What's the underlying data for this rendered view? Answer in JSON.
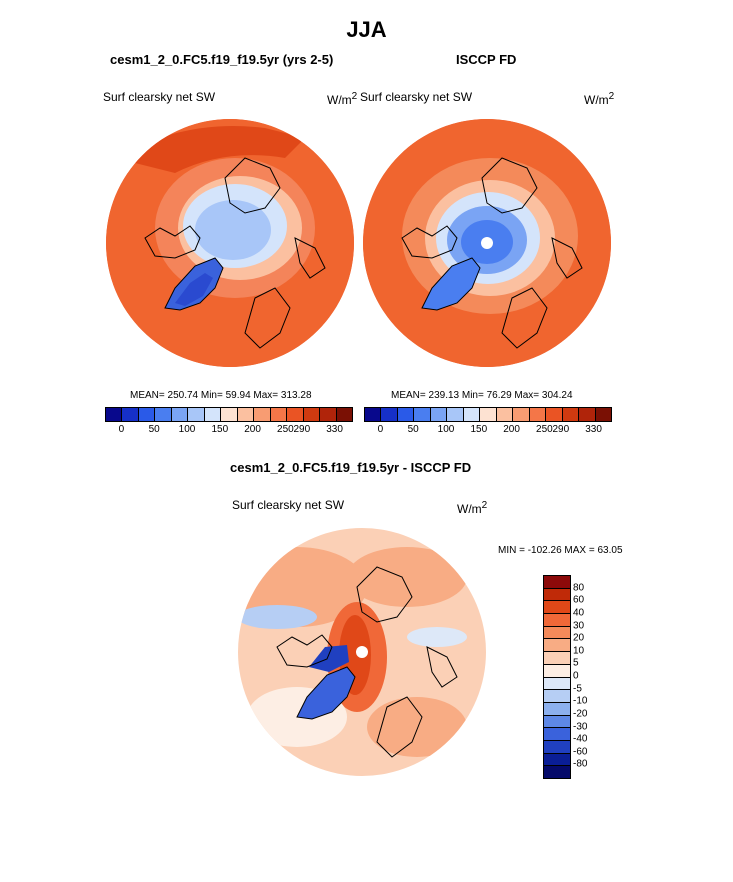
{
  "main_title": "JJA",
  "left_panel": {
    "case": "cesm1_2_0.FC5.f19_f19.5yr (yrs 2-5)",
    "variable": "Surf clearsky net SW",
    "units": "W/m",
    "units_sup": "2",
    "stats": "MEAN= 250.74  Min=  59.94  Max= 313.28"
  },
  "right_panel": {
    "case": "ISCCP FD",
    "variable": "Surf clearsky net SW",
    "units": "W/m",
    "units_sup": "2",
    "stats": "MEAN= 239.13  Min=  76.29  Max= 304.24"
  },
  "abs_colorbar": {
    "colors": [
      "#08088c",
      "#1630c8",
      "#2a5ae8",
      "#4a7ef0",
      "#7aa4f4",
      "#a8c6f8",
      "#d4e4fb",
      "#fde2d2",
      "#fbc0a0",
      "#f89c72",
      "#f47648",
      "#ea5424",
      "#d03a10",
      "#b0240a",
      "#7a1004"
    ],
    "ticks": [
      "0",
      "50",
      "100",
      "150",
      "200",
      "250",
      "290",
      "330"
    ]
  },
  "diff_title": "cesm1_2_0.FC5.f19_f19.5yr - ISCCP FD",
  "diff_panel": {
    "variable": "Surf clearsky net SW",
    "units": "W/m",
    "units_sup": "2",
    "minmax": "MIN = -102.26 MAX =  63.05"
  },
  "diff_colorbar": {
    "colors": [
      "#8c0a0a",
      "#c02a08",
      "#e04818",
      "#f06838",
      "#f48a5a",
      "#f8ac84",
      "#fbd0b6",
      "#fdeee4",
      "#dde8f8",
      "#b6cef4",
      "#8cb0ee",
      "#5e88e6",
      "#3a62dc",
      "#2040c0",
      "#0a1e96",
      "#050a6a"
    ],
    "ticks": [
      "80",
      "60",
      "40",
      "30",
      "20",
      "10",
      "5",
      "0",
      "-5",
      "-10",
      "-20",
      "-30",
      "-40",
      "-60",
      "-80"
    ]
  }
}
